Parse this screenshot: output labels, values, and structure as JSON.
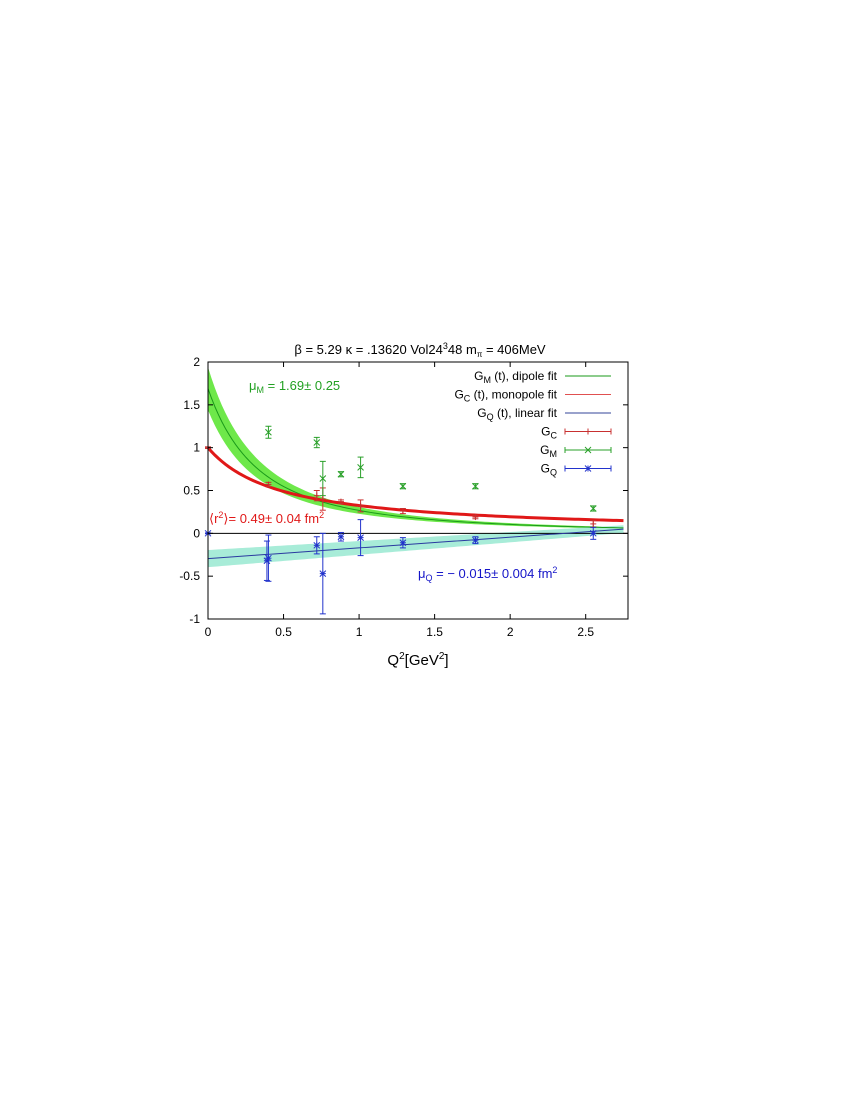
{
  "chart_data": {
    "type": "scatter",
    "title": {
      "beta_label": "β = 5.29",
      "kappa_label": "κ = .13620",
      "vol_prefix": "Vol24",
      "vol_sup": "3",
      "vol_suffix": "48",
      "mpi_base": "m",
      "mpi_sub": "π",
      "mpi_value": " = 406MeV"
    },
    "xlabel": {
      "base": "Q",
      "sup1": "2",
      "mid": "[GeV",
      "sup2": "2",
      "end": "]"
    },
    "ylabel": "",
    "xlim": [
      0,
      2.78
    ],
    "ylim": [
      -1,
      2
    ],
    "xticks": [
      {
        "v": 0,
        "label": "0"
      },
      {
        "v": 0.5,
        "label": "0.5"
      },
      {
        "v": 1,
        "label": "1"
      },
      {
        "v": 1.5,
        "label": "1.5"
      },
      {
        "v": 2,
        "label": "2"
      },
      {
        "v": 2.5,
        "label": "2.5"
      }
    ],
    "yticks": [
      {
        "v": -1,
        "label": "-1"
      },
      {
        "v": -0.5,
        "label": "-0.5"
      },
      {
        "v": 0,
        "label": "0"
      },
      {
        "v": 0.5,
        "label": "0.5"
      },
      {
        "v": 1,
        "label": "1"
      },
      {
        "v": 1.5,
        "label": "1.5"
      },
      {
        "v": 2,
        "label": "2"
      }
    ],
    "grid": false,
    "legend_position": "top-right",
    "legend": [
      {
        "base": "G",
        "sub": "M",
        "text": "(t),  dipole fit",
        "style": "line",
        "color": "#1a9a1a"
      },
      {
        "base": "G",
        "sub": "C",
        "text": "(t),  monopole fit",
        "style": "line",
        "color": "#e05050"
      },
      {
        "base": "G",
        "sub": "Q",
        "text": "(t),  linear fit",
        "style": "line",
        "color": "#334499"
      },
      {
        "base": "G",
        "sub": "C",
        "text": "",
        "style": "errorbar",
        "marker": "plus",
        "color": "#c83030"
      },
      {
        "base": "G",
        "sub": "M",
        "text": "",
        "style": "errorbar",
        "marker": "cross",
        "color": "#2aa02a"
      },
      {
        "base": "G",
        "sub": "Q",
        "text": "",
        "style": "errorbar",
        "marker": "star",
        "color": "#2233cc"
      }
    ],
    "annotations": {
      "muM": {
        "base": "μ",
        "sub": "M",
        "text": " = 1.69± 0.25",
        "color": "#22a022"
      },
      "r2": {
        "open": "⟨r",
        "sup": "2",
        "close": "⟩",
        "text": "= 0.49±  0.04 fm",
        "sup2": "2",
        "color": "#e01818"
      },
      "muQ": {
        "base": "μ",
        "sub": "Q",
        "text": " = − 0.015±  0.004 fm",
        "sup": "2",
        "color": "#1515c8"
      }
    },
    "fits": {
      "GM_dipole": {
        "G0": 1.69,
        "M2": 0.66,
        "band_rel": 0.148,
        "color": "#1a9a1a",
        "band_color": "#6ee84a"
      },
      "GC_monopole": {
        "G0": 1.0,
        "M2": 0.48,
        "color": "#e01818"
      },
      "GQ_linear": {
        "a": -0.295,
        "b": 0.125,
        "band_at0": 0.1,
        "band_slope": -0.02,
        "color": "#2a3aa0",
        "band_color": "#a8ecd8"
      }
    },
    "series": [
      {
        "name": "GC",
        "marker": "plus",
        "color": "#c83030",
        "points": [
          {
            "x": 0.0,
            "y": 1.0,
            "err": 0.01
          },
          {
            "x": 0.4,
            "y": 0.57,
            "err": 0.025
          },
          {
            "x": 0.72,
            "y": 0.44,
            "err": 0.06
          },
          {
            "x": 0.76,
            "y": 0.4,
            "err": 0.13
          },
          {
            "x": 0.88,
            "y": 0.37,
            "err": 0.02
          },
          {
            "x": 1.01,
            "y": 0.32,
            "err": 0.07
          },
          {
            "x": 1.29,
            "y": 0.26,
            "err": 0.03
          },
          {
            "x": 1.77,
            "y": 0.19,
            "err": 0.02
          },
          {
            "x": 2.55,
            "y": 0.11,
            "err": 0.04
          }
        ]
      },
      {
        "name": "GM",
        "marker": "cross",
        "color": "#2aa02a",
        "points": [
          {
            "x": 0.4,
            "y": 1.18,
            "err": 0.07
          },
          {
            "x": 0.72,
            "y": 1.06,
            "err": 0.06
          },
          {
            "x": 0.76,
            "y": 0.64,
            "err": 0.2
          },
          {
            "x": 0.88,
            "y": 0.69,
            "err": 0.03
          },
          {
            "x": 1.01,
            "y": 0.77,
            "err": 0.12
          },
          {
            "x": 1.29,
            "y": 0.55,
            "err": 0.03
          },
          {
            "x": 1.77,
            "y": 0.55,
            "err": 0.03
          },
          {
            "x": 2.55,
            "y": 0.29,
            "err": 0.03
          }
        ]
      },
      {
        "name": "GQ",
        "marker": "star",
        "color": "#2233cc",
        "points": [
          {
            "x": 0.0,
            "y": 0.0,
            "err": 0.005
          },
          {
            "x": 0.39,
            "y": -0.32,
            "err": 0.23
          },
          {
            "x": 0.4,
            "y": -0.29,
            "err": 0.27
          },
          {
            "x": 0.72,
            "y": -0.14,
            "err": 0.1
          },
          {
            "x": 0.76,
            "y": -0.47,
            "err": 0.47
          },
          {
            "x": 0.88,
            "y": -0.04,
            "err": 0.05
          },
          {
            "x": 1.01,
            "y": -0.05,
            "err": 0.21
          },
          {
            "x": 1.29,
            "y": -0.11,
            "err": 0.06
          },
          {
            "x": 1.77,
            "y": -0.08,
            "err": 0.04
          },
          {
            "x": 2.55,
            "y": 0.0,
            "err": 0.07
          }
        ]
      }
    ]
  }
}
